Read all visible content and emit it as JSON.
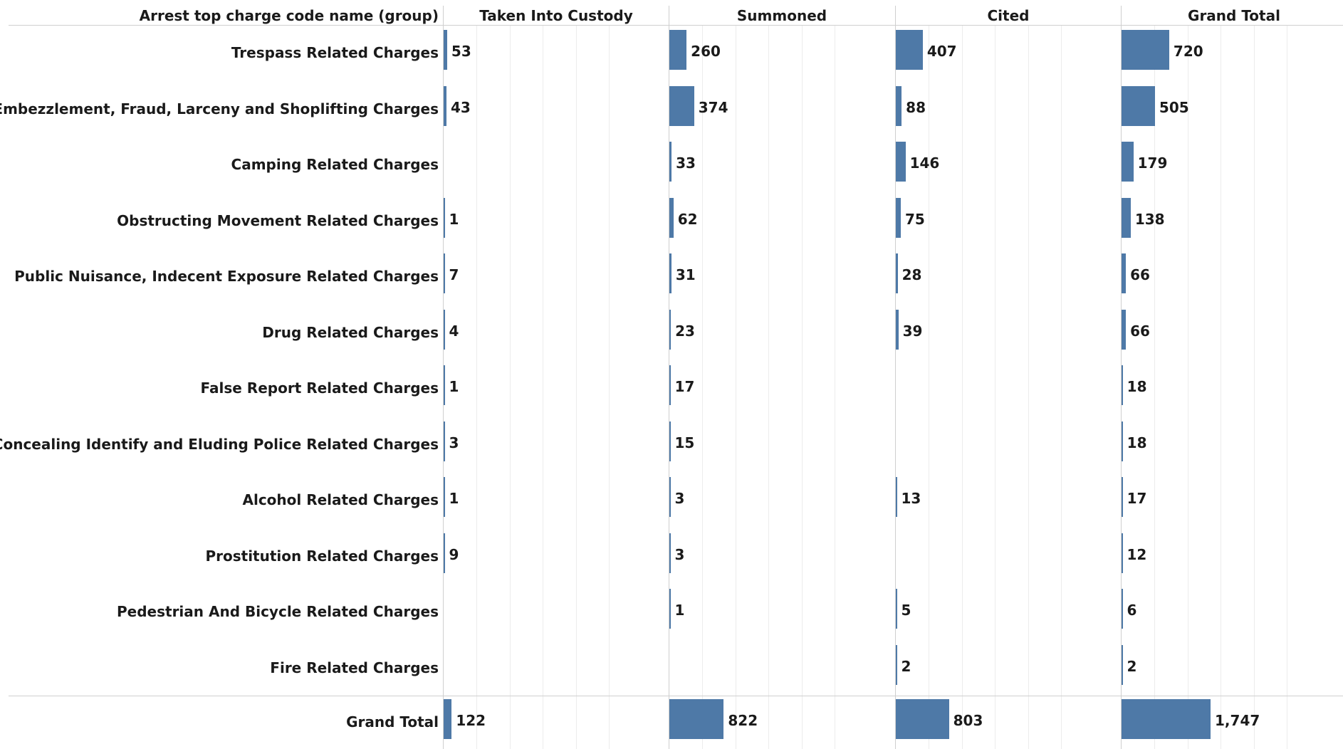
{
  "chart_data": {
    "type": "bar",
    "row_header": "Arrest top charge code name (group)",
    "columns": [
      "Taken Into Custody",
      "Summoned",
      "Cited",
      "Grand Total"
    ],
    "categories": [
      "Trespass Related Charges",
      "Embezzlement, Fraud, Larceny and Shoplifting Charges",
      "Camping Related Charges",
      "Obstructing Movement Related Charges",
      "Public Nuisance, Indecent Exposure Related Charges",
      "Drug Related Charges",
      "False Report Related Charges",
      "Concealing Identify and Eluding Police Related Charges",
      "Alcohol Related Charges",
      "Prostitution Related Charges",
      "Pedestrian And Bicycle Related Charges",
      "Fire Related Charges"
    ],
    "series": [
      {
        "name": "Taken Into Custody",
        "values": [
          53,
          43,
          null,
          1,
          7,
          4,
          1,
          3,
          1,
          9,
          null,
          null
        ]
      },
      {
        "name": "Summoned",
        "values": [
          260,
          374,
          33,
          62,
          31,
          23,
          17,
          15,
          3,
          3,
          1,
          null
        ]
      },
      {
        "name": "Cited",
        "values": [
          407,
          88,
          146,
          75,
          28,
          39,
          null,
          null,
          13,
          null,
          5,
          2
        ]
      },
      {
        "name": "Grand Total",
        "values": [
          720,
          505,
          179,
          138,
          66,
          66,
          18,
          18,
          17,
          12,
          6,
          2
        ]
      }
    ],
    "total_row": {
      "label": "Grand Total",
      "values": [
        122,
        822,
        803,
        1747
      ],
      "value_labels": [
        "122",
        "822",
        "803",
        "1,747"
      ]
    },
    "xlim": [
      0,
      2000
    ],
    "grid": "vertical",
    "legend": "none"
  }
}
